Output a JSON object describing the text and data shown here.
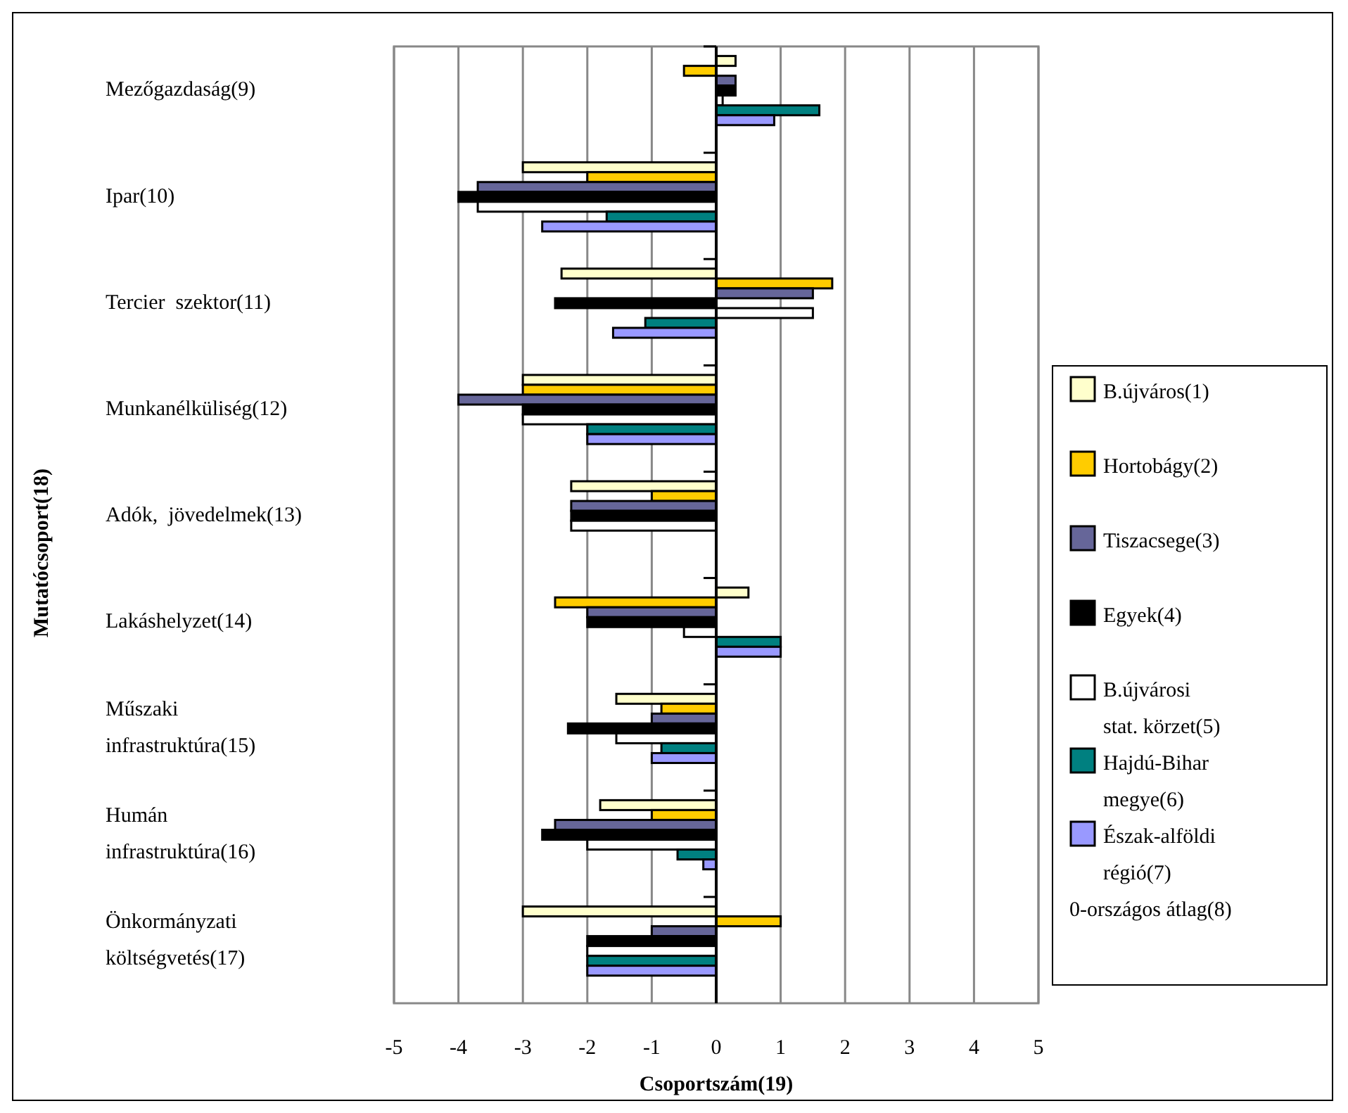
{
  "chart_data": {
    "type": "bar",
    "orientation": "horizontal",
    "xlabel": "Csoportszám(19)",
    "ylabel": "Mutatócsoport(18)",
    "categories": [
      "Mezőgazdaság(9)",
      "Ipar(10)",
      "Tercier  szektor(11)",
      "Munkanélküliség(12)",
      "Adók,  jövedelmek(13)",
      "Lakáshelyzet(14)",
      "Műszaki infrastruktúra(15)",
      "Humán infrastruktúra(16)",
      "Önkormányzati költségvetés(17)"
    ],
    "series": [
      {
        "name": "B.újváros(1)",
        "color": "#ffffcc",
        "values": [
          0.3,
          -3,
          -2.4,
          -3,
          -2.25,
          0.5,
          -1.55,
          -1.8,
          -3
        ]
      },
      {
        "name": "Hortobágy(2)",
        "color": "#ffcc00",
        "values": [
          -0.5,
          -2,
          1.8,
          -3,
          -1,
          -2.5,
          -0.85,
          -1,
          1
        ]
      },
      {
        "name": "Tiszacsege(3)",
        "color": "#666699",
        "values": [
          0.3,
          -3.7,
          1.5,
          -4,
          -2.25,
          -2,
          -1,
          -2.5,
          -1
        ]
      },
      {
        "name": "Egyek(4)",
        "color": "#000000",
        "values": [
          0.3,
          -4,
          -2.5,
          -3,
          -2.25,
          -2,
          -2.3,
          -2.7,
          -2
        ]
      },
      {
        "name": "B.újvárosi stat. körzet(5)",
        "color": "#ffffff",
        "values": [
          0.1,
          -3.7,
          1.5,
          -3,
          -2.25,
          -0.5,
          -1.55,
          -2,
          -2
        ]
      },
      {
        "name": "Hajdú-Bihar megye(6)",
        "color": "#008080",
        "values": [
          1.6,
          -1.7,
          -1.1,
          -2,
          null,
          1,
          -0.85,
          -0.6,
          -2
        ]
      },
      {
        "name": "Észak-alföldi régió(7)",
        "color": "#9999ff",
        "values": [
          0.9,
          -2.7,
          -1.6,
          -2,
          null,
          1,
          -1,
          -0.2,
          -2
        ]
      }
    ],
    "xlim": [
      -5,
      5
    ],
    "xticks": [
      -5,
      -4,
      -3,
      -2,
      -1,
      0,
      1,
      2,
      3,
      4,
      5
    ],
    "grid": "x",
    "legend": "right",
    "annotations": [
      "0-országos átlag(8)"
    ]
  }
}
